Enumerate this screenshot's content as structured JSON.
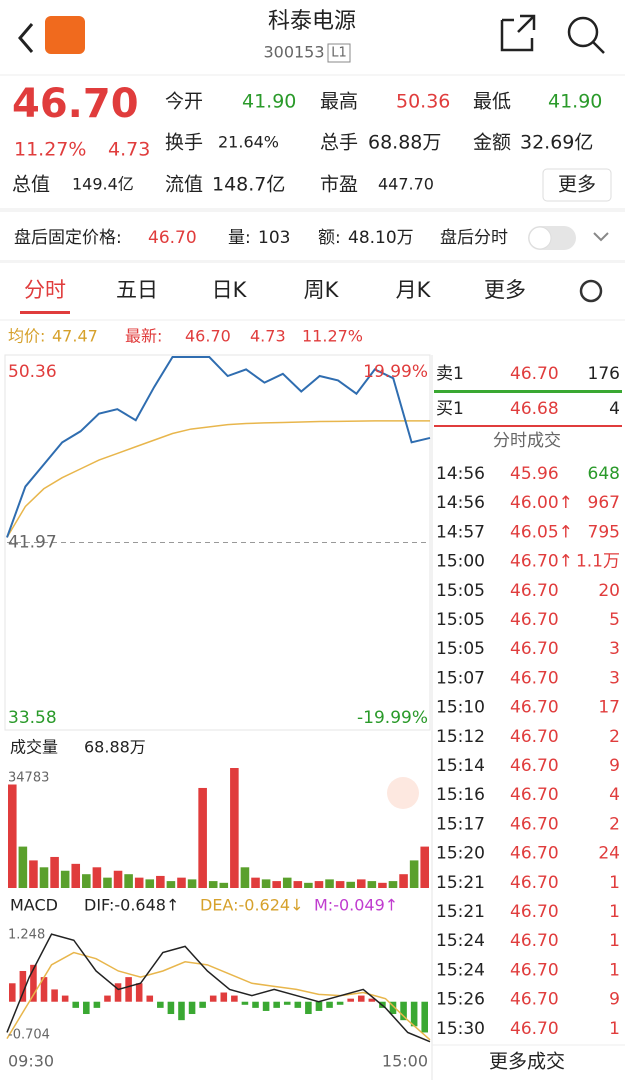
{
  "header": {
    "title": "科泰电源",
    "code": "300153",
    "badge": "L1"
  },
  "quote": {
    "price": "46.70",
    "change_pct": "11.27%",
    "change": "4.73",
    "fields": [
      {
        "label": "今开",
        "value": "41.90"
      },
      {
        "label": "最高",
        "value": "50.36"
      },
      {
        "label": "最低",
        "value": "41.90"
      },
      {
        "label": "换手",
        "value": "21.64%"
      },
      {
        "label": "总手",
        "value": "68.88万"
      },
      {
        "label": "金额",
        "value": "32.69亿"
      },
      {
        "label": "总值",
        "value": "149.4亿"
      },
      {
        "label": "流值",
        "value": "148.7亿"
      },
      {
        "label": "市盈",
        "value": "447.70"
      }
    ],
    "more": "更多"
  },
  "after_hours": {
    "price_label": "盘后固定价格:",
    "price": "46.70",
    "vol_label": "量:",
    "vol": "103",
    "amt_label": "额:",
    "amt": "48.10万",
    "toggle": "盘后分时"
  },
  "tabs": [
    "分时",
    "五日",
    "日K",
    "周K",
    "月K",
    "更多"
  ],
  "info": {
    "avg_label": "均价:",
    "avg": "47.47",
    "last_label": "最新:",
    "last": "46.70",
    "change": "4.73",
    "pct": "11.27%"
  },
  "intraday": {
    "ylim": [
      33.58,
      50.36
    ],
    "mid": 41.97,
    "top_pct": "19.99%",
    "bottom_pct": "-19.99%",
    "price": [
      42.2,
      44.5,
      45.5,
      46.5,
      47.0,
      47.8,
      48.0,
      47.5,
      49.0,
      50.36,
      50.36,
      50.36,
      49.5,
      49.8,
      49.2,
      49.6,
      48.8,
      49.5,
      49.3,
      48.7,
      49.8,
      49.4,
      46.5,
      46.7
    ],
    "avg": [
      42.2,
      43.6,
      44.4,
      44.9,
      45.3,
      45.7,
      46.0,
      46.3,
      46.6,
      46.9,
      47.1,
      47.2,
      47.3,
      47.35,
      47.38,
      47.4,
      47.42,
      47.44,
      47.45,
      47.46,
      47.47,
      47.47,
      47.47,
      47.47
    ],
    "x_start": "09:30",
    "x_end": "15:00"
  },
  "volume": {
    "label": "成交量",
    "total": "68.88万",
    "ylim": [
      0,
      34783
    ],
    "values": [
      30000,
      12000,
      8000,
      6000,
      9000,
      5000,
      7000,
      4000,
      6000,
      3000,
      5000,
      4000,
      3000,
      2500,
      3500,
      2000,
      3000,
      2500,
      29000,
      2000,
      1500,
      34783,
      6000,
      3000,
      2500,
      2000,
      3000,
      2000,
      1500,
      2000,
      2500,
      2000,
      1800,
      2500,
      2000,
      1500,
      2000,
      4000,
      8000,
      12000
    ],
    "colors": [
      "#e03c3c",
      "#5aa02c",
      "#e03c3c",
      "#5aa02c",
      "#e03c3c",
      "#5aa02c",
      "#e03c3c",
      "#5aa02c",
      "#e03c3c",
      "#5aa02c",
      "#e03c3c",
      "#5aa02c",
      "#e03c3c",
      "#5aa02c",
      "#e03c3c",
      "#5aa02c",
      "#e03c3c",
      "#5aa02c",
      "#e03c3c",
      "#5aa02c",
      "#5aa02c",
      "#e03c3c",
      "#5aa02c",
      "#e03c3c",
      "#5aa02c",
      "#e03c3c",
      "#5aa02c",
      "#e03c3c",
      "#5aa02c",
      "#e03c3c",
      "#5aa02c",
      "#e03c3c",
      "#5aa02c",
      "#e03c3c",
      "#5aa02c",
      "#e03c3c",
      "#5aa02c",
      "#e03c3c",
      "#5aa02c",
      "#e03c3c"
    ]
  },
  "macd": {
    "label": "MACD",
    "dif": "DIF:-0.648↑",
    "dea": "DEA:-0.624↓",
    "m": "M:-0.049↑",
    "ylim": [
      -0.704,
      1.248
    ],
    "bars": [
      0.3,
      0.5,
      0.6,
      0.4,
      0.2,
      0.1,
      -0.1,
      -0.2,
      -0.1,
      0.1,
      0.3,
      0.4,
      0.3,
      0.1,
      -0.1,
      -0.2,
      -0.3,
      -0.2,
      -0.1,
      0.1,
      0.15,
      0.1,
      -0.05,
      -0.1,
      -0.15,
      -0.1,
      -0.05,
      -0.1,
      -0.2,
      -0.15,
      -0.1,
      -0.05,
      0.05,
      0.1,
      0.05,
      -0.1,
      -0.2,
      -0.3,
      -0.4,
      -0.5
    ],
    "dif_line": [
      -0.5,
      0.4,
      1.1,
      1.0,
      0.5,
      0.2,
      0.3,
      0.8,
      0.9,
      0.5,
      0.2,
      0.1,
      0.2,
      0.1,
      0.0,
      0.1,
      0.2,
      -0.1,
      -0.5,
      -0.65
    ],
    "dea_line": [
      -0.6,
      0.0,
      0.6,
      0.8,
      0.7,
      0.5,
      0.4,
      0.5,
      0.65,
      0.6,
      0.45,
      0.3,
      0.25,
      0.2,
      0.12,
      0.1,
      0.15,
      0.05,
      -0.3,
      -0.62
    ]
  },
  "book": [
    [
      "卖1",
      "46.70",
      "176"
    ],
    [
      "买1",
      "46.68",
      "4"
    ]
  ],
  "trades_title": "分时成交",
  "trades": [
    [
      "14:56",
      "45.96",
      "648"
    ],
    [
      "14:56",
      "46.00↑",
      "967"
    ],
    [
      "14:57",
      "46.05↑",
      "795"
    ],
    [
      "15:00",
      "46.70↑",
      "1.1万"
    ],
    [
      "15:05",
      "46.70",
      "20"
    ],
    [
      "15:05",
      "46.70",
      "5"
    ],
    [
      "15:05",
      "46.70",
      "3"
    ],
    [
      "15:07",
      "46.70",
      "3"
    ],
    [
      "15:10",
      "46.70",
      "17"
    ],
    [
      "15:12",
      "46.70",
      "2"
    ],
    [
      "15:14",
      "46.70",
      "9"
    ],
    [
      "15:16",
      "46.70",
      "4"
    ],
    [
      "15:17",
      "46.70",
      "2"
    ],
    [
      "15:20",
      "46.70",
      "24"
    ],
    [
      "15:21",
      "46.70",
      "1"
    ],
    [
      "15:21",
      "46.70",
      "1"
    ],
    [
      "15:24",
      "46.70",
      "1"
    ],
    [
      "15:24",
      "46.70",
      "1"
    ],
    [
      "15:26",
      "46.70",
      "9"
    ],
    [
      "15:30",
      "46.70",
      "1"
    ]
  ],
  "more_trades": "更多成交"
}
